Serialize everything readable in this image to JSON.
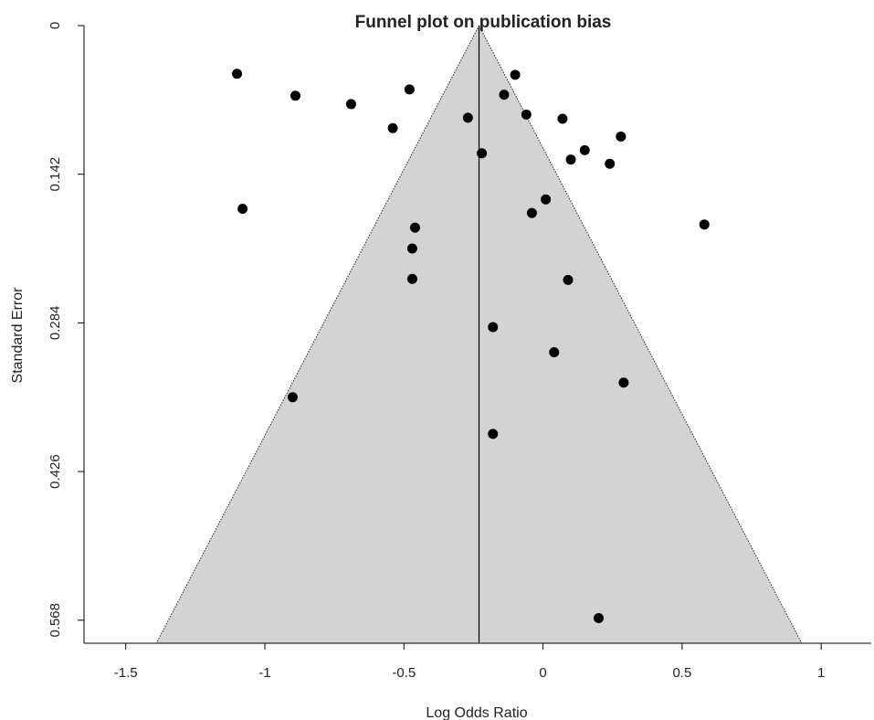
{
  "chart_data": {
    "type": "scatter",
    "title": "Funnel plot on publication bias",
    "xlabel": "Log Odds Ratio",
    "ylabel": "Standard Error",
    "xlim": [
      -1.65,
      1.18
    ],
    "ylim": [
      0.59,
      0
    ],
    "y_axis_reversed": true,
    "x_ticks": [
      -1.5,
      -1,
      -0.5,
      0,
      0.5,
      1
    ],
    "x_tick_labels": [
      "-1.5",
      "-1",
      "-0.5",
      "0",
      "0.5",
      "1"
    ],
    "y_ticks": [
      0,
      0.142,
      0.284,
      0.426,
      0.568
    ],
    "y_tick_labels": [
      "0",
      "0.142",
      "0.284",
      "0.426",
      "0.568"
    ],
    "grid": false,
    "legend": "none",
    "funnel": {
      "center_estimate": -0.23,
      "apex_se": 0,
      "base_se": 0.59,
      "base_left": -1.39,
      "base_right": 0.93,
      "fill_color": "#d3d3d3",
      "edge_style": "dotted"
    },
    "series": [
      {
        "points": [
          {
            "x": -1.1,
            "y": 0.046
          },
          {
            "x": -0.89,
            "y": 0.067
          },
          {
            "x": -0.69,
            "y": 0.075
          },
          {
            "x": -0.48,
            "y": 0.061
          },
          {
            "x": -0.54,
            "y": 0.098
          },
          {
            "x": -0.27,
            "y": 0.088
          },
          {
            "x": -0.22,
            "y": 0.122
          },
          {
            "x": -0.1,
            "y": 0.047
          },
          {
            "x": -0.14,
            "y": 0.066
          },
          {
            "x": -0.06,
            "y": 0.085
          },
          {
            "x": 0.07,
            "y": 0.089
          },
          {
            "x": 0.28,
            "y": 0.106
          },
          {
            "x": 0.15,
            "y": 0.119
          },
          {
            "x": 0.1,
            "y": 0.128
          },
          {
            "x": 0.24,
            "y": 0.132
          },
          {
            "x": -1.08,
            "y": 0.175
          },
          {
            "x": 0.01,
            "y": 0.166
          },
          {
            "x": -0.04,
            "y": 0.179
          },
          {
            "x": 0.58,
            "y": 0.19
          },
          {
            "x": -0.46,
            "y": 0.193
          },
          {
            "x": -0.47,
            "y": 0.213
          },
          {
            "x": -0.47,
            "y": 0.242
          },
          {
            "x": 0.09,
            "y": 0.243
          },
          {
            "x": -0.18,
            "y": 0.288
          },
          {
            "x": 0.04,
            "y": 0.312
          },
          {
            "x": 0.29,
            "y": 0.341
          },
          {
            "x": -0.9,
            "y": 0.355
          },
          {
            "x": -0.18,
            "y": 0.39
          },
          {
            "x": 0.2,
            "y": 0.566
          }
        ],
        "color": "#000000"
      }
    ]
  }
}
